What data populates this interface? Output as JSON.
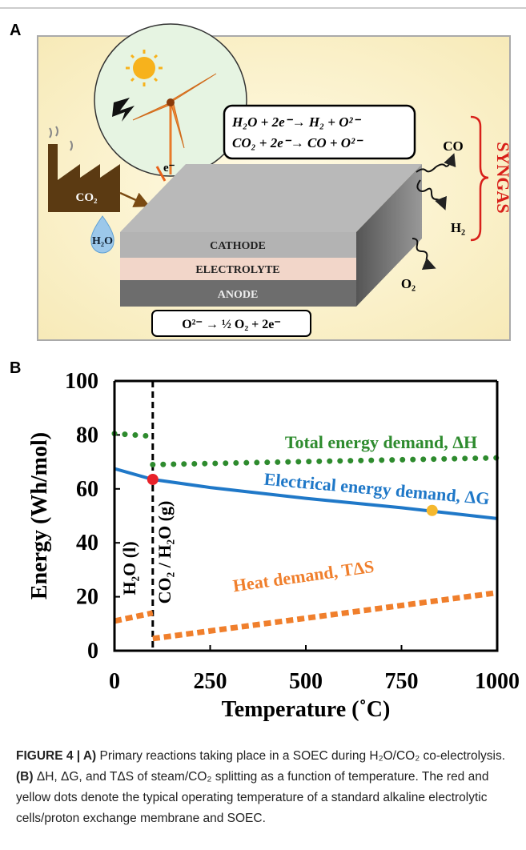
{
  "panel_labels": [
    "A",
    "B"
  ],
  "panel_a": {
    "reactions": [
      "H₂O + 2e⁻→ H₂ + O²⁻",
      "CO₂ + 2e⁻→ CO + O²⁻"
    ],
    "layers": [
      "CATHODE",
      "ELECTROLYTE",
      "ANODE"
    ],
    "anode_reaction": "O²⁻ → ½ O₂ + 2e⁻",
    "inputs": [
      "CO₂",
      "H₂O"
    ],
    "electron": "e⁻",
    "products": [
      "CO",
      "H₂",
      "O₂"
    ],
    "syngas": "SYNGAS"
  },
  "chart_data": {
    "type": "line",
    "xlabel": "Temperature (˚C)",
    "ylabel": "Energy (Wh/mol)",
    "xlim": [
      0,
      1000
    ],
    "ylim": [
      0,
      100
    ],
    "xticks": [
      0,
      250,
      500,
      750,
      1000
    ],
    "yticks": [
      0,
      20,
      40,
      60,
      80,
      100
    ],
    "series": [
      {
        "name": "Total energy demand, ΔH",
        "color": "#2e8b2e",
        "style": "dotted",
        "x": [
          0,
          100,
          100,
          100,
          1000
        ],
        "values": [
          80.5,
          79.5,
          null,
          69,
          71.5
        ]
      },
      {
        "name": "Electrical energy demand, ΔG",
        "color": "#1f78c8",
        "style": "solid",
        "x": [
          0,
          100,
          250,
          500,
          750,
          1000
        ],
        "values": [
          67.5,
          63.5,
          60.5,
          56.5,
          53,
          49
        ]
      },
      {
        "name": "Heat demand, TΔS",
        "color": "#f07f2c",
        "style": "dashed",
        "x": [
          0,
          100,
          100,
          100,
          1000
        ],
        "values": [
          11,
          14,
          null,
          4.5,
          21.5
        ]
      }
    ],
    "points": [
      {
        "x": 100,
        "value": 63.5,
        "color": "#e8222a"
      },
      {
        "x": 830,
        "value": 52,
        "color": "#f5b82e"
      }
    ],
    "phase_boundary": {
      "x": 100,
      "labels": [
        "H₂O (l)",
        "CO₂ / H₂O (g)"
      ]
    }
  },
  "caption": {
    "label": "FIGURE 4 | A)",
    "text1": " Primary reactions taking place in a SOEC during H₂O/CO₂ co-electrolysis. ",
    "label_b": "(B)",
    "text2": " ΔH, ΔG, and TΔS of steam/CO₂ splitting as a function of temperature. The red and yellow dots denote the typical operating temperature of a standard alkaline electrolytic cells/proton exchange membrane and SOEC."
  }
}
